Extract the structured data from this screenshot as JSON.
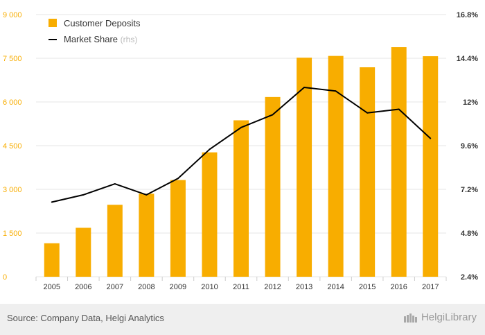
{
  "footer": {
    "source": "Source: Company Data, Helgi Analytics",
    "brand": "HelgiLibrary"
  },
  "colors": {
    "bars": "#f8ad00",
    "line": "#000000",
    "left_axis_text": "#f8ad00",
    "right_axis_text": "#333333",
    "grid": "#e6e6e6",
    "footer_bg": "#efefef"
  },
  "chart_data": {
    "type": "bar+line",
    "title": "",
    "categories": [
      "2005",
      "2006",
      "2007",
      "2008",
      "2009",
      "2010",
      "2011",
      "2012",
      "2013",
      "2014",
      "2015",
      "2016",
      "2017"
    ],
    "series": [
      {
        "name": "Customer Deposits",
        "type": "bar",
        "axis": "left",
        "values": [
          1150,
          1680,
          2470,
          2850,
          3320,
          4270,
          5370,
          6170,
          7520,
          7580,
          7190,
          7880,
          7570
        ]
      },
      {
        "name": "Market Share",
        "name_suffix": "(rhs)",
        "type": "line",
        "axis": "right",
        "values": [
          6.5,
          6.9,
          7.5,
          6.9,
          7.8,
          9.4,
          10.6,
          11.3,
          12.8,
          12.6,
          11.4,
          11.6,
          10.0
        ]
      }
    ],
    "y_left": {
      "min": 0,
      "max": 9000,
      "ticks": [
        0,
        1500,
        3000,
        4500,
        6000,
        7500,
        9000
      ],
      "tick_labels": [
        "0",
        "1 500",
        "3 000",
        "4 500",
        "6 000",
        "7 500",
        "9 000"
      ]
    },
    "y_right": {
      "min": 2.4,
      "max": 16.8,
      "ticks": [
        2.4,
        4.8,
        7.2,
        9.6,
        12,
        14.4,
        16.8
      ],
      "tick_labels": [
        "2.4%",
        "4.8%",
        "7.2%",
        "9.6%",
        "12%",
        "14.4%",
        "16.8%"
      ]
    },
    "grid": true,
    "legend": "top-left"
  }
}
